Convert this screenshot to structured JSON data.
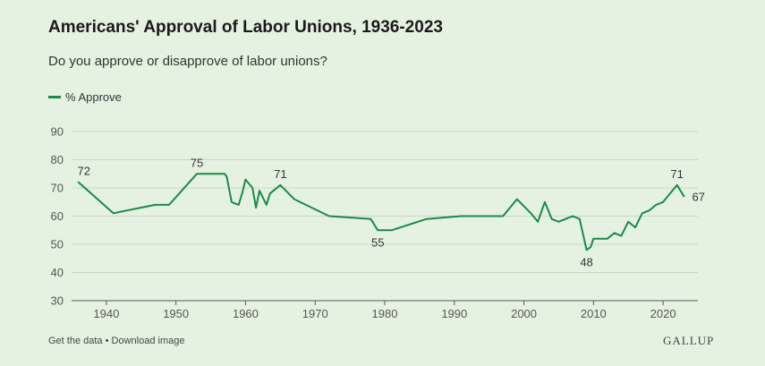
{
  "header": {
    "title": "Americans' Approval of Labor Unions, 1936-2023",
    "subtitle": "Do you approve or disapprove of labor unions?"
  },
  "footer": {
    "get_data": "Get the data",
    "separator": "•",
    "download": "Download image",
    "brand": "GALLUP"
  },
  "colors": {
    "line": "#1a8a4a",
    "background": "#e6f2e1"
  },
  "chart_data": {
    "type": "line",
    "title": "Americans' Approval of Labor Unions, 1936-2023",
    "subtitle": "Do you approve or disapprove of labor unions?",
    "xlabel": "",
    "ylabel": "",
    "xlim": [
      1935,
      2025
    ],
    "ylim": [
      30,
      90
    ],
    "x_ticks": [
      1940,
      1950,
      1960,
      1970,
      1980,
      1990,
      2000,
      2010,
      2020
    ],
    "y_ticks": [
      30,
      40,
      50,
      60,
      70,
      80,
      90
    ],
    "grid": true,
    "legend": "top-left",
    "series": [
      {
        "name": "% Approve",
        "x": [
          1936,
          1941,
          1947,
          1949,
          1953,
          1957,
          1957.3,
          1958,
          1959,
          1959.5,
          1960,
          1961,
          1961.5,
          1962,
          1963,
          1963.5,
          1965,
          1967,
          1972,
          1978,
          1979,
          1981,
          1986,
          1991,
          1997,
          1999,
          2001,
          2002,
          2003,
          2004,
          2005,
          2007,
          2008,
          2009,
          2009.6,
          2010,
          2011,
          2012,
          2013,
          2014,
          2015,
          2016,
          2017,
          2018,
          2019,
          2020,
          2021,
          2022,
          2023
        ],
        "y": [
          72,
          61,
          64,
          64,
          75,
          75,
          74,
          65,
          64,
          68,
          73,
          70,
          63,
          69,
          64,
          68,
          71,
          66,
          60,
          59,
          55,
          55,
          59,
          60,
          60,
          66,
          61,
          58,
          65,
          59,
          58,
          60,
          59,
          48,
          49,
          52,
          52,
          52,
          54,
          53,
          58,
          56,
          61,
          62,
          64,
          65,
          68,
          71,
          67
        ]
      }
    ],
    "annotations": [
      {
        "text": "72",
        "x": 1936,
        "y": 72,
        "pos": "above"
      },
      {
        "text": "75",
        "x": 1953,
        "y": 75,
        "pos": "above"
      },
      {
        "text": "71",
        "x": 1965,
        "y": 71,
        "pos": "above"
      },
      {
        "text": "55",
        "x": 1979,
        "y": 55,
        "pos": "below"
      },
      {
        "text": "48",
        "x": 2009,
        "y": 48,
        "pos": "below"
      },
      {
        "text": "71",
        "x": 2022,
        "y": 71,
        "pos": "above"
      },
      {
        "text": "67",
        "x": 2023,
        "y": 67,
        "pos": "right"
      }
    ]
  }
}
